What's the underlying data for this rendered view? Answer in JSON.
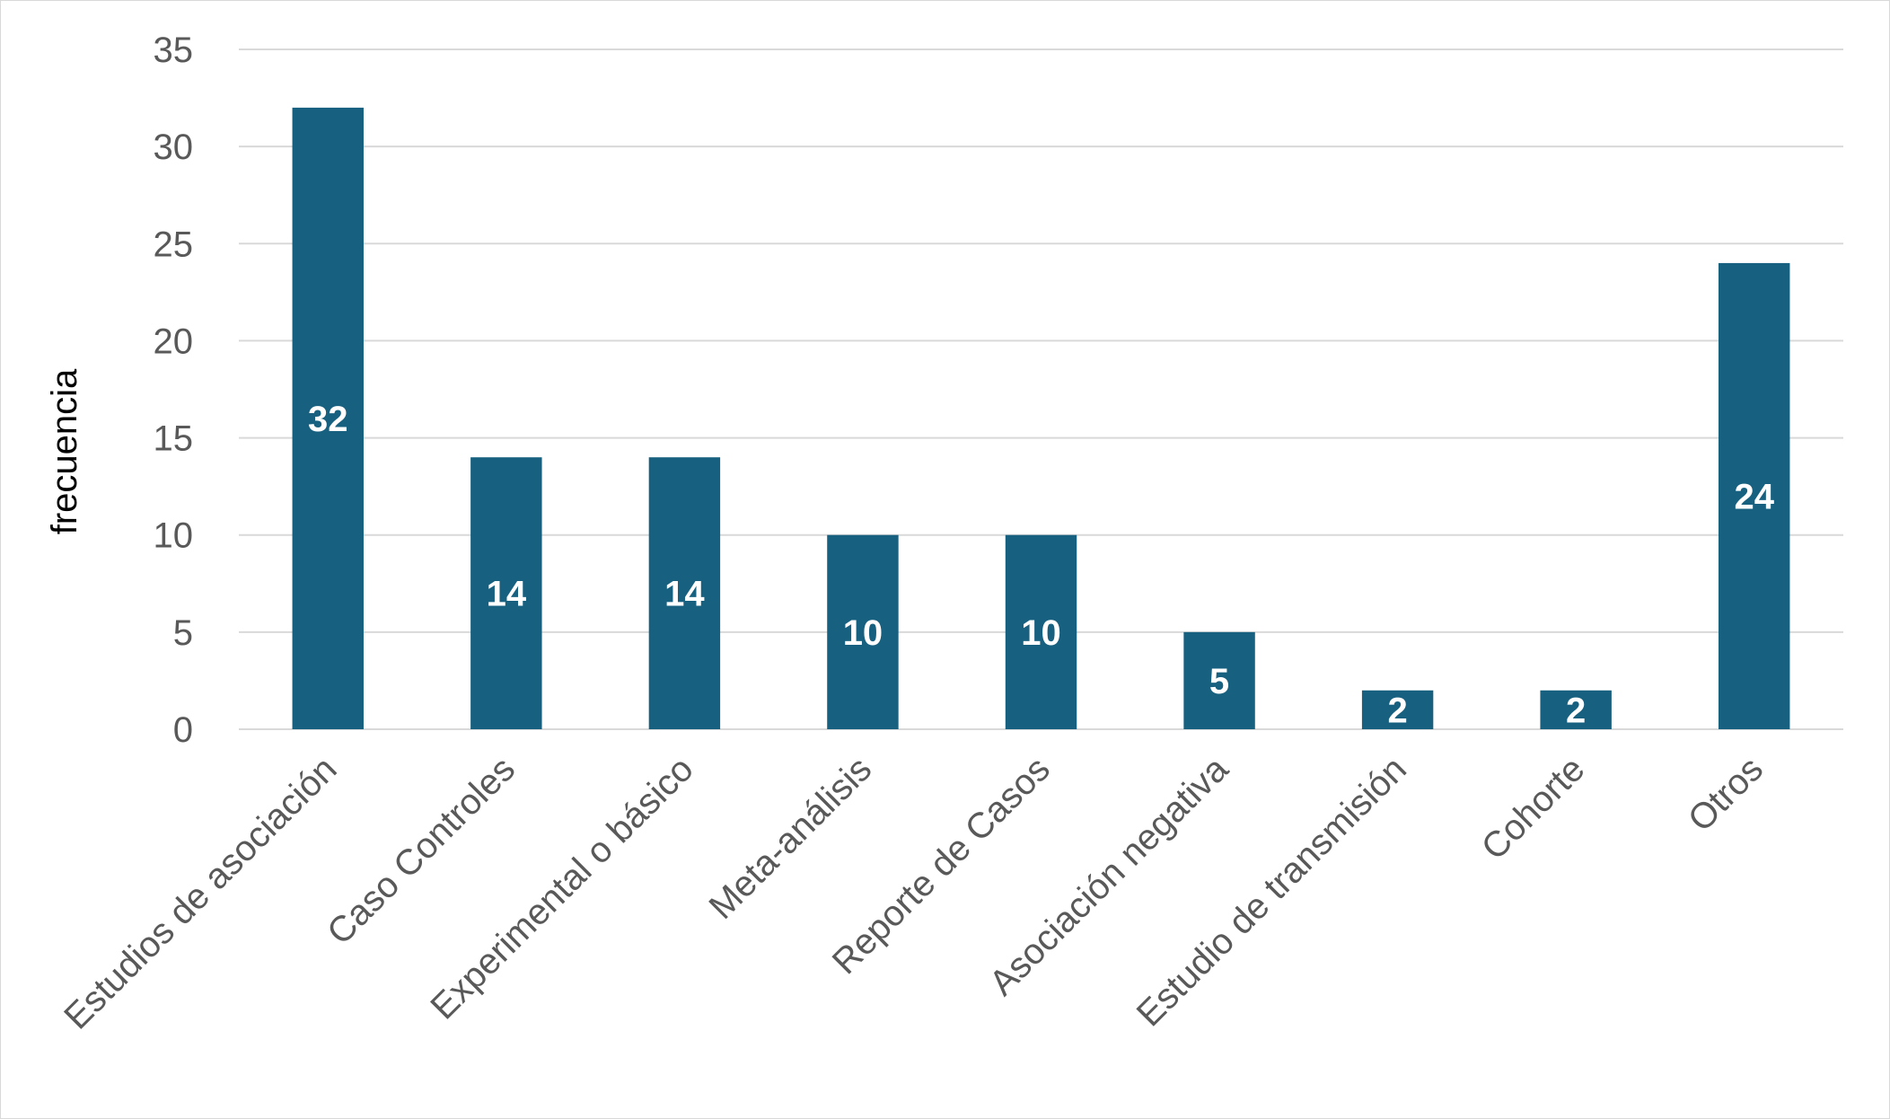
{
  "chart_data": {
    "type": "bar",
    "ylabel": "frecuencia",
    "xlabel": "",
    "ylim": [
      0,
      35
    ],
    "yticks": [
      0,
      5,
      10,
      15,
      20,
      25,
      30,
      35
    ],
    "grid": true,
    "legend": "none",
    "bar_color": "#17607f",
    "categories": [
      "Estudios de asociación",
      "Caso Controles",
      "Experimental o básico",
      "Meta-análisis",
      "Reporte de Casos",
      "Asociación negativa",
      "Estudio de transmisión",
      "Cohorte",
      "Otros"
    ],
    "values": [
      32,
      14,
      14,
      10,
      10,
      5,
      2,
      2,
      24
    ]
  }
}
